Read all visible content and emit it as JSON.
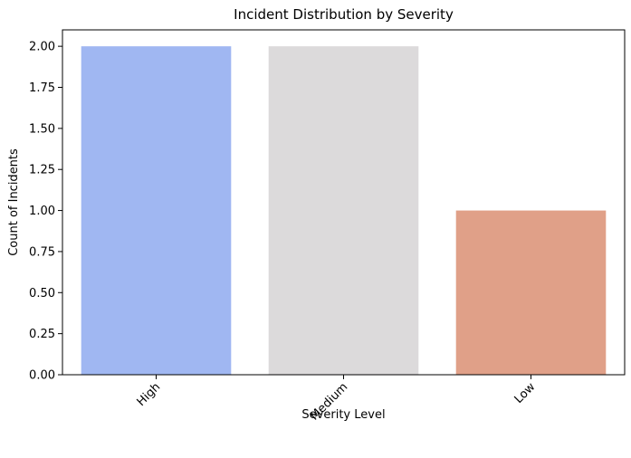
{
  "chart_data": {
    "type": "bar",
    "title": "Incident Distribution by Severity",
    "xlabel": "Severity Level",
    "ylabel": "Count of Incidents",
    "categories": [
      "High",
      "Medium",
      "Low"
    ],
    "values": [
      2,
      2,
      1
    ],
    "colors": [
      "#a0b7f2",
      "#dcdadb",
      "#e0a088"
    ],
    "ylim": [
      0,
      2.1
    ],
    "yticks": [
      0,
      0.25,
      0.5,
      0.75,
      1.0,
      1.25,
      1.5,
      1.75,
      2.0
    ],
    "ytick_labels": [
      "0.00",
      "0.25",
      "0.50",
      "0.75",
      "1.00",
      "1.25",
      "1.50",
      "1.75",
      "2.00"
    ],
    "xtick_rotation_deg": 45,
    "grid": false,
    "legend": "none"
  }
}
